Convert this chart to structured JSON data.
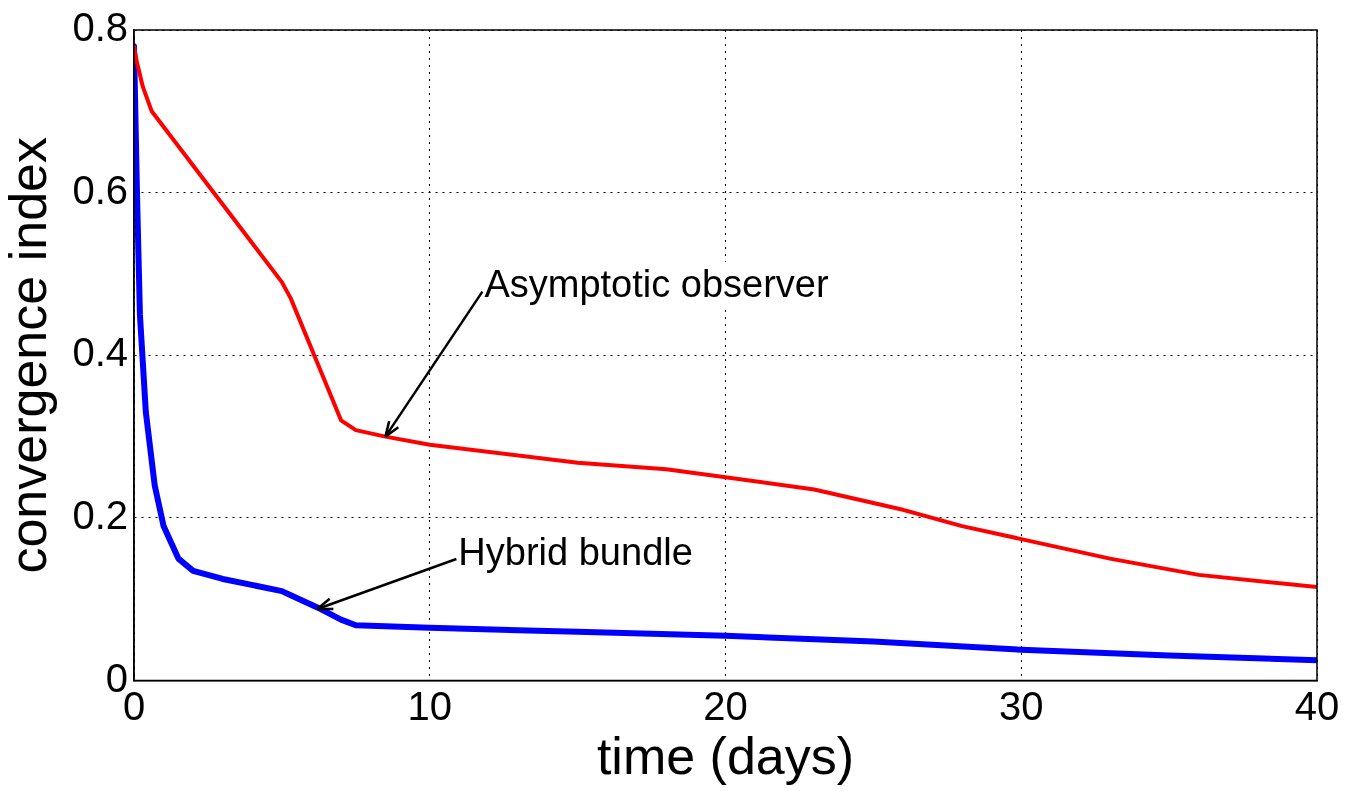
{
  "chart_data": {
    "type": "line",
    "xlabel": "time (days)",
    "ylabel": "convergence index",
    "xlim": [
      0,
      40
    ],
    "xticks": [
      0,
      10,
      20,
      30,
      40
    ],
    "ylim": [
      0,
      0.8
    ],
    "yticks": [
      0,
      0.2,
      0.4,
      0.6,
      0.8
    ],
    "grid": true,
    "legend": false,
    "marker": "none",
    "line_style": "solid",
    "series": [
      {
        "color": "#ff0000",
        "x": [
          0,
          0.1,
          0.3,
          0.6,
          5,
          5.3,
          7,
          7.5,
          8.5,
          10,
          15,
          18,
          20,
          23,
          26,
          28,
          30,
          33,
          36,
          40
        ],
        "values": [
          0.78,
          0.76,
          0.73,
          0.7,
          0.49,
          0.47,
          0.32,
          0.308,
          0.3,
          0.29,
          0.268,
          0.26,
          0.25,
          0.235,
          0.21,
          0.19,
          0.174,
          0.15,
          0.13,
          0.115
        ]
      },
      {
        "color": "#0000ff",
        "x": [
          0,
          0.1,
          0.2,
          0.4,
          0.7,
          1,
          1.5,
          2,
          3,
          5,
          5.3,
          6.2,
          7,
          7.5,
          10,
          15,
          20,
          25,
          30,
          35,
          40
        ],
        "values": [
          0.78,
          0.6,
          0.45,
          0.33,
          0.24,
          0.19,
          0.15,
          0.135,
          0.125,
          0.11,
          0.105,
          0.09,
          0.075,
          0.068,
          0.065,
          0.06,
          0.055,
          0.048,
          0.038,
          0.031,
          0.025
        ]
      }
    ],
    "annotations": [
      {
        "text": "Asymptotic observer",
        "x": 8.5,
        "y": 0.3
      },
      {
        "text": "Hybrid bundle",
        "x": 6.2,
        "y": 0.088
      }
    ]
  }
}
